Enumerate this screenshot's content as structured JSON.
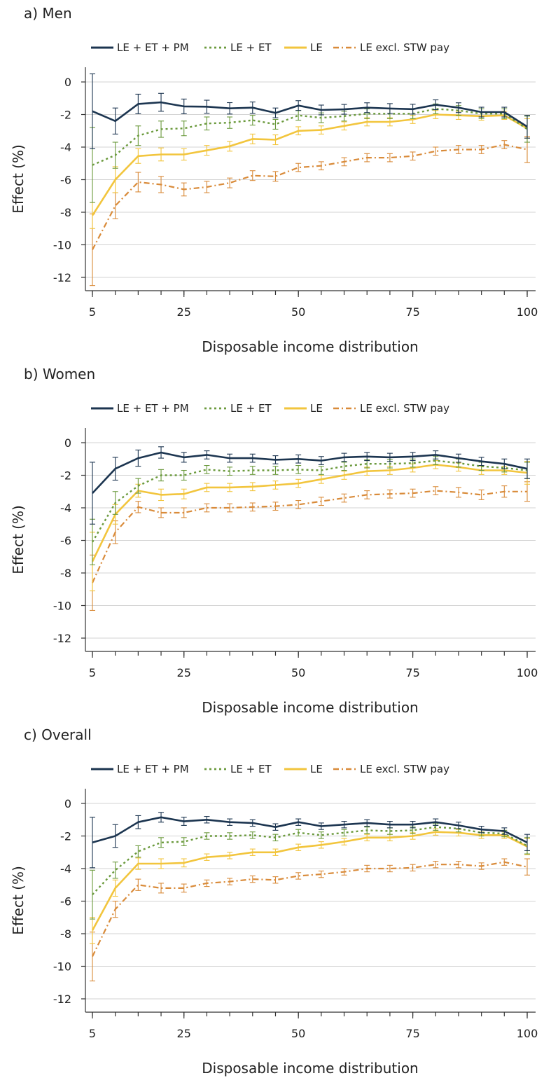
{
  "chart_data": [
    {
      "type": "line",
      "title": "a) Men",
      "xlabel": "Disposable income distribution",
      "ylabel": "Effect (%)",
      "xlim": [
        5,
        100
      ],
      "ylim": [
        -12,
        0
      ],
      "xticks": [
        5,
        25,
        50,
        75,
        100
      ],
      "yticks": [
        0,
        -2,
        -4,
        -6,
        -8,
        -10,
        -12
      ],
      "grid": true,
      "legend_position": "top",
      "x": [
        5,
        10,
        15,
        20,
        25,
        30,
        35,
        40,
        45,
        50,
        55,
        60,
        65,
        70,
        75,
        80,
        85,
        90,
        95,
        100
      ],
      "series": [
        {
          "name": "LE + ET + PM",
          "color": "#1c3550",
          "dash": "solid",
          "values": [
            -1.8,
            -2.4,
            -1.35,
            -1.25,
            -1.5,
            -1.52,
            -1.62,
            -1.58,
            -1.9,
            -1.45,
            -1.72,
            -1.68,
            -1.58,
            -1.63,
            -1.67,
            -1.4,
            -1.58,
            -1.85,
            -1.85,
            -2.75
          ],
          "ci": [
            2.3,
            0.8,
            0.6,
            0.55,
            0.45,
            0.4,
            0.35,
            0.35,
            0.3,
            0.3,
            0.3,
            0.3,
            0.3,
            0.3,
            0.3,
            0.3,
            0.3,
            0.3,
            0.3,
            0.7
          ]
        },
        {
          "name": "LE + ET",
          "color": "#6b9a3d",
          "dash": "dot",
          "values": [
            -5.1,
            -4.5,
            -3.3,
            -2.9,
            -2.85,
            -2.55,
            -2.5,
            -2.35,
            -2.6,
            -2.05,
            -2.2,
            -2.1,
            -1.95,
            -1.95,
            -1.95,
            -1.65,
            -1.75,
            -1.95,
            -1.95,
            -2.9
          ],
          "ci": [
            2.3,
            0.8,
            0.6,
            0.5,
            0.45,
            0.4,
            0.35,
            0.3,
            0.3,
            0.3,
            0.3,
            0.3,
            0.3,
            0.3,
            0.3,
            0.3,
            0.3,
            0.3,
            0.3,
            0.8
          ]
        },
        {
          "name": "LE",
          "color": "#f2c53d",
          "dash": "solid",
          "values": [
            -8.2,
            -6.0,
            -4.55,
            -4.45,
            -4.45,
            -4.2,
            -3.95,
            -3.5,
            -3.55,
            -3.0,
            -2.95,
            -2.7,
            -2.45,
            -2.45,
            -2.3,
            -2.0,
            -2.05,
            -2.1,
            -2.05,
            -2.85
          ],
          "ci": [
            0.8,
            0.8,
            0.45,
            0.4,
            0.35,
            0.3,
            0.3,
            0.3,
            0.3,
            0.25,
            0.25,
            0.25,
            0.25,
            0.25,
            0.25,
            0.25,
            0.25,
            0.25,
            0.25,
            0.6
          ]
        },
        {
          "name": "LE excl. STW pay",
          "color": "#d98b3a",
          "dash": "dashdot",
          "values": [
            -10.3,
            -7.6,
            -6.15,
            -6.3,
            -6.6,
            -6.45,
            -6.2,
            -5.75,
            -5.8,
            -5.25,
            -5.15,
            -4.9,
            -4.65,
            -4.65,
            -4.55,
            -4.25,
            -4.15,
            -4.15,
            -3.85,
            -4.15
          ],
          "ci": [
            2.2,
            0.8,
            0.6,
            0.5,
            0.4,
            0.35,
            0.3,
            0.3,
            0.3,
            0.25,
            0.25,
            0.25,
            0.25,
            0.25,
            0.25,
            0.25,
            0.25,
            0.25,
            0.25,
            0.8
          ]
        }
      ]
    },
    {
      "type": "line",
      "title": "b) Women",
      "xlabel": "Disposable income distribution",
      "ylabel": "Effect (%)",
      "xlim": [
        5,
        100
      ],
      "ylim": [
        -12,
        0
      ],
      "xticks": [
        5,
        25,
        50,
        75,
        100
      ],
      "yticks": [
        0,
        -2,
        -4,
        -6,
        -8,
        -10,
        -12
      ],
      "grid": true,
      "legend_position": "top",
      "x": [
        5,
        10,
        15,
        20,
        25,
        30,
        35,
        40,
        45,
        50,
        55,
        60,
        65,
        70,
        75,
        80,
        85,
        90,
        95,
        100
      ],
      "series": [
        {
          "name": "LE + ET + PM",
          "color": "#1c3550",
          "dash": "solid",
          "values": [
            -3.1,
            -1.6,
            -0.95,
            -0.6,
            -0.9,
            -0.75,
            -0.95,
            -0.95,
            -1.05,
            -1.0,
            -1.1,
            -0.9,
            -0.85,
            -0.9,
            -0.85,
            -0.75,
            -0.95,
            -1.15,
            -1.3,
            -1.6
          ],
          "ci": [
            1.9,
            0.7,
            0.5,
            0.35,
            0.3,
            0.25,
            0.25,
            0.25,
            0.25,
            0.25,
            0.25,
            0.25,
            0.25,
            0.25,
            0.25,
            0.25,
            0.25,
            0.25,
            0.3,
            0.6
          ]
        },
        {
          "name": "LE + ET",
          "color": "#6b9a3d",
          "dash": "dot",
          "values": [
            -6.1,
            -3.7,
            -2.65,
            -2.0,
            -2.0,
            -1.65,
            -1.75,
            -1.7,
            -1.7,
            -1.65,
            -1.7,
            -1.45,
            -1.3,
            -1.3,
            -1.25,
            -1.1,
            -1.25,
            -1.45,
            -1.55,
            -1.7
          ],
          "ci": [
            1.4,
            0.7,
            0.45,
            0.35,
            0.3,
            0.25,
            0.25,
            0.25,
            0.25,
            0.25,
            0.25,
            0.25,
            0.25,
            0.25,
            0.25,
            0.25,
            0.25,
            0.25,
            0.25,
            0.5
          ]
        },
        {
          "name": "LE",
          "color": "#f2c53d",
          "dash": "solid",
          "values": [
            -7.3,
            -4.4,
            -2.95,
            -3.2,
            -3.15,
            -2.75,
            -2.75,
            -2.7,
            -2.6,
            -2.5,
            -2.25,
            -2.0,
            -1.75,
            -1.7,
            -1.55,
            -1.35,
            -1.5,
            -1.7,
            -1.7,
            -1.85
          ],
          "ci": [
            1.8,
            0.6,
            0.4,
            0.35,
            0.3,
            0.25,
            0.25,
            0.25,
            0.25,
            0.25,
            0.25,
            0.25,
            0.25,
            0.25,
            0.25,
            0.25,
            0.25,
            0.25,
            0.25,
            0.7
          ]
        },
        {
          "name": "LE excl. STW pay",
          "color": "#d98b3a",
          "dash": "dashdot",
          "values": [
            -8.6,
            -5.5,
            -3.95,
            -4.3,
            -4.3,
            -4.0,
            -4.0,
            -3.95,
            -3.9,
            -3.8,
            -3.6,
            -3.4,
            -3.2,
            -3.15,
            -3.1,
            -2.95,
            -3.05,
            -3.2,
            -3.0,
            -3.0
          ],
          "ci": [
            1.7,
            0.7,
            0.35,
            0.3,
            0.3,
            0.25,
            0.25,
            0.25,
            0.25,
            0.25,
            0.25,
            0.25,
            0.25,
            0.25,
            0.25,
            0.25,
            0.3,
            0.3,
            0.35,
            0.6
          ]
        }
      ]
    },
    {
      "type": "line",
      "title": "c) Overall",
      "xlabel": "Disposable income distribution",
      "ylabel": "Effect (%)",
      "xlim": [
        5,
        100
      ],
      "ylim": [
        -12,
        0
      ],
      "xticks": [
        5,
        25,
        50,
        75,
        100
      ],
      "yticks": [
        0,
        -2,
        -4,
        -6,
        -8,
        -10,
        -12
      ],
      "grid": true,
      "legend_position": "top",
      "x": [
        5,
        10,
        15,
        20,
        25,
        30,
        35,
        40,
        45,
        50,
        55,
        60,
        65,
        70,
        75,
        80,
        85,
        90,
        95,
        100
      ],
      "series": [
        {
          "name": "LE + ET + PM",
          "color": "#1c3550",
          "dash": "solid",
          "values": [
            -2.4,
            -2.0,
            -1.15,
            -0.85,
            -1.1,
            -1.0,
            -1.15,
            -1.2,
            -1.45,
            -1.15,
            -1.4,
            -1.3,
            -1.2,
            -1.3,
            -1.3,
            -1.15,
            -1.35,
            -1.6,
            -1.7,
            -2.4
          ],
          "ci": [
            1.55,
            0.7,
            0.4,
            0.3,
            0.25,
            0.2,
            0.2,
            0.2,
            0.2,
            0.2,
            0.2,
            0.2,
            0.2,
            0.2,
            0.2,
            0.2,
            0.2,
            0.2,
            0.2,
            0.5
          ]
        },
        {
          "name": "LE + ET",
          "color": "#6b9a3d",
          "dash": "dot",
          "values": [
            -5.6,
            -4.1,
            -2.95,
            -2.4,
            -2.35,
            -2.0,
            -2.0,
            -1.95,
            -2.1,
            -1.8,
            -1.95,
            -1.8,
            -1.65,
            -1.7,
            -1.65,
            -1.45,
            -1.55,
            -1.8,
            -1.85,
            -2.6
          ],
          "ci": [
            1.5,
            0.5,
            0.35,
            0.3,
            0.25,
            0.2,
            0.2,
            0.2,
            0.2,
            0.2,
            0.2,
            0.2,
            0.2,
            0.2,
            0.2,
            0.2,
            0.2,
            0.2,
            0.2,
            0.5
          ]
        },
        {
          "name": "LE",
          "color": "#f2c53d",
          "dash": "solid",
          "values": [
            -7.8,
            -5.2,
            -3.7,
            -3.7,
            -3.65,
            -3.3,
            -3.2,
            -3.0,
            -3.0,
            -2.7,
            -2.55,
            -2.35,
            -2.1,
            -2.1,
            -2.0,
            -1.75,
            -1.8,
            -1.95,
            -1.95,
            -2.65
          ],
          "ci": [
            0.8,
            0.5,
            0.35,
            0.3,
            0.25,
            0.2,
            0.2,
            0.2,
            0.2,
            0.2,
            0.2,
            0.2,
            0.2,
            0.2,
            0.2,
            0.2,
            0.2,
            0.2,
            0.2,
            0.5
          ]
        },
        {
          "name": "LE excl. STW pay",
          "color": "#d98b3a",
          "dash": "dashdot",
          "values": [
            -9.4,
            -6.5,
            -5.0,
            -5.2,
            -5.2,
            -4.9,
            -4.8,
            -4.65,
            -4.7,
            -4.45,
            -4.35,
            -4.2,
            -4.0,
            -4.0,
            -3.95,
            -3.75,
            -3.75,
            -3.85,
            -3.6,
            -3.9
          ],
          "ci": [
            1.5,
            0.5,
            0.35,
            0.3,
            0.25,
            0.2,
            0.2,
            0.2,
            0.2,
            0.2,
            0.2,
            0.2,
            0.2,
            0.2,
            0.2,
            0.2,
            0.2,
            0.2,
            0.2,
            0.5
          ]
        }
      ]
    }
  ]
}
